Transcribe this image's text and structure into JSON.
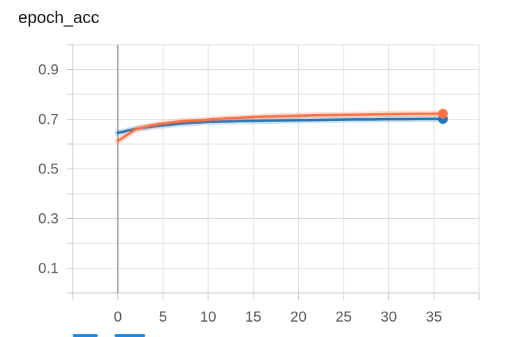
{
  "chart_data": {
    "type": "line",
    "title": "epoch_acc",
    "xlabel": "",
    "ylabel": "",
    "xlim": [
      -5,
      40
    ],
    "ylim": [
      0.0,
      1.0
    ],
    "x_ticks": [
      0,
      5,
      10,
      15,
      20,
      25,
      30,
      35
    ],
    "y_ticks": [
      0.1,
      0.3,
      0.5,
      0.7,
      0.9
    ],
    "grid": true,
    "series": [
      {
        "color": "#1f77b4",
        "x": [
          0,
          2,
          4,
          6,
          8,
          10,
          12,
          14,
          16,
          18,
          20,
          22,
          24,
          26,
          28,
          30,
          32,
          34,
          36
        ],
        "values": [
          0.645,
          0.661,
          0.671,
          0.679,
          0.685,
          0.689,
          0.691,
          0.693,
          0.694,
          0.695,
          0.696,
          0.697,
          0.698,
          0.699,
          0.699,
          0.7,
          0.7,
          0.701,
          0.701
        ]
      },
      {
        "color": "#ff7043",
        "x": [
          0,
          2,
          4,
          6,
          8,
          10,
          12,
          14,
          16,
          18,
          20,
          22,
          24,
          26,
          28,
          30,
          32,
          34,
          36
        ],
        "values": [
          0.612,
          0.66,
          0.677,
          0.688,
          0.694,
          0.698,
          0.703,
          0.707,
          0.71,
          0.712,
          0.714,
          0.716,
          0.717,
          0.718,
          0.719,
          0.72,
          0.721,
          0.722,
          0.722
        ]
      }
    ]
  },
  "legend": {
    "swatches": [
      {
        "color": "#1e88e5"
      },
      {
        "color": "#1e88e5"
      }
    ]
  }
}
